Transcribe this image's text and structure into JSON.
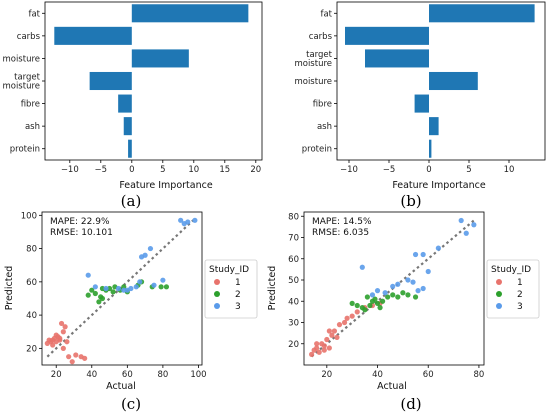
{
  "chart_data": [
    {
      "id": "a",
      "type": "bar",
      "orientation": "horizontal",
      "title": "(a)",
      "xlabel": "Feature Importance",
      "categories": [
        "fat",
        "carbs",
        "moisture",
        "target\nmoisture",
        "fibre",
        "ash",
        "protein"
      ],
      "values": [
        18.8,
        -12.5,
        9.2,
        -6.8,
        -2.2,
        -1.3,
        -0.6
      ],
      "xlim": [
        -14,
        21
      ],
      "xticks": [
        -10,
        -5,
        0,
        5,
        10,
        15,
        20
      ],
      "color": "#1f77b4"
    },
    {
      "id": "b",
      "type": "bar",
      "orientation": "horizontal",
      "title": "(b)",
      "xlabel": "Feature Importance",
      "categories": [
        "fat",
        "carbs",
        "target\nmoisture",
        "moisture",
        "fibre",
        "ash",
        "protein"
      ],
      "values": [
        13.2,
        -10.5,
        -8.0,
        6.1,
        -1.8,
        1.2,
        0.3
      ],
      "xlim": [
        -11.5,
        14.5
      ],
      "xticks": [
        -10,
        -5,
        0,
        5,
        10
      ],
      "color": "#1f77b4"
    },
    {
      "id": "c",
      "type": "scatter",
      "title": "(c)",
      "xlabel": "Actual",
      "ylabel": "Predicted",
      "xlim": [
        12,
        102
      ],
      "ylim": [
        10,
        102
      ],
      "xticks": [
        20,
        40,
        60,
        80,
        100
      ],
      "yticks": [
        20,
        40,
        60,
        80,
        100
      ],
      "annotations": [
        "MAPE: 22.9%",
        "RMSE: 10.101"
      ],
      "identity_line": [
        [
          15,
          15
        ],
        [
          97,
          97
        ]
      ],
      "legend_title": "Study_ID",
      "series": [
        {
          "name": "1",
          "color": "#e8736c",
          "points": [
            [
              15,
              23
            ],
            [
              17,
              24
            ],
            [
              18,
              25
            ],
            [
              19,
              26
            ],
            [
              20,
              24
            ],
            [
              21,
              27
            ],
            [
              22,
              25
            ],
            [
              23,
              35
            ],
            [
              24,
              30
            ],
            [
              25,
              33
            ],
            [
              22,
              26
            ],
            [
              20,
              28
            ],
            [
              26,
              24
            ],
            [
              27,
              15
            ],
            [
              29,
              12
            ],
            [
              31,
              16
            ],
            [
              34,
              15
            ],
            [
              36,
              14
            ],
            [
              18,
              22
            ],
            [
              24,
              20
            ],
            [
              16,
              25
            ]
          ]
        },
        {
          "name": "2",
          "color": "#2ca02c",
          "points": [
            [
              38,
              52
            ],
            [
              40,
              55
            ],
            [
              42,
              53
            ],
            [
              44,
              48
            ],
            [
              46,
              50
            ],
            [
              48,
              55
            ],
            [
              50,
              56
            ],
            [
              53,
              57
            ],
            [
              56,
              55
            ],
            [
              60,
              54
            ],
            [
              66,
              58
            ],
            [
              68,
              60
            ],
            [
              74,
              57
            ],
            [
              79,
              57
            ],
            [
              82,
              57
            ],
            [
              46,
              56
            ],
            [
              52,
              54
            ],
            [
              58,
              57
            ],
            [
              45,
              51
            ]
          ]
        },
        {
          "name": "3",
          "color": "#5a9bea",
          "points": [
            [
              38,
              64
            ],
            [
              42,
              57
            ],
            [
              48,
              56
            ],
            [
              55,
              56
            ],
            [
              58,
              55
            ],
            [
              62,
              56
            ],
            [
              65,
              57
            ],
            [
              67,
              60
            ],
            [
              68,
              75
            ],
            [
              70,
              76
            ],
            [
              73,
              80
            ],
            [
              75,
              58
            ],
            [
              80,
              61
            ],
            [
              90,
              97
            ],
            [
              92,
              95
            ],
            [
              94,
              96
            ],
            [
              98,
              97
            ],
            [
              60,
              55
            ]
          ]
        }
      ]
    },
    {
      "id": "d",
      "type": "scatter",
      "title": "(d)",
      "xlabel": "Actual",
      "ylabel": "Predicted",
      "xlim": [
        11,
        82
      ],
      "ylim": [
        10,
        82
      ],
      "xticks": [
        20,
        40,
        60,
        80
      ],
      "yticks": [
        20,
        30,
        40,
        50,
        60,
        70,
        80
      ],
      "annotations": [
        "MAPE: 14.5%",
        "RMSE: 6.035"
      ],
      "identity_line": [
        [
          14,
          14
        ],
        [
          78,
          78
        ]
      ],
      "legend_title": "Study_ID",
      "series": [
        {
          "name": "1",
          "color": "#e8736c",
          "points": [
            [
              14,
              15
            ],
            [
              15,
              17
            ],
            [
              16,
              18
            ],
            [
              17,
              16
            ],
            [
              18,
              20
            ],
            [
              19,
              19
            ],
            [
              20,
              22
            ],
            [
              21,
              18
            ],
            [
              22,
              24
            ],
            [
              23,
              26
            ],
            [
              24,
              23
            ],
            [
              25,
              29
            ],
            [
              27,
              30
            ],
            [
              28,
              32
            ],
            [
              30,
              33
            ],
            [
              32,
              35
            ],
            [
              35,
              37
            ],
            [
              38,
              38
            ],
            [
              41,
              39
            ],
            [
              16,
              20
            ],
            [
              19,
              17
            ],
            [
              21,
              26
            ]
          ]
        },
        {
          "name": "2",
          "color": "#2ca02c",
          "points": [
            [
              30,
              39
            ],
            [
              32,
              38
            ],
            [
              34,
              37
            ],
            [
              35,
              36
            ],
            [
              37,
              38
            ],
            [
              38,
              40
            ],
            [
              39,
              41
            ],
            [
              40,
              39
            ],
            [
              42,
              40
            ],
            [
              44,
              42
            ],
            [
              46,
              43
            ],
            [
              48,
              42
            ],
            [
              50,
              44
            ],
            [
              52,
              43
            ],
            [
              55,
              42
            ],
            [
              36,
              42
            ],
            [
              41,
              37
            ]
          ]
        },
        {
          "name": "3",
          "color": "#5a9bea",
          "points": [
            [
              34,
              56
            ],
            [
              38,
              43
            ],
            [
              40,
              45
            ],
            [
              43,
              44
            ],
            [
              46,
              47
            ],
            [
              48,
              48
            ],
            [
              52,
              50
            ],
            [
              54,
              49
            ],
            [
              56,
              45
            ],
            [
              58,
              46
            ],
            [
              55,
              62
            ],
            [
              58,
              62
            ],
            [
              64,
              65
            ],
            [
              73,
              78
            ],
            [
              75,
              72
            ],
            [
              78,
              76
            ],
            [
              60,
              54
            ]
          ]
        }
      ]
    }
  ]
}
